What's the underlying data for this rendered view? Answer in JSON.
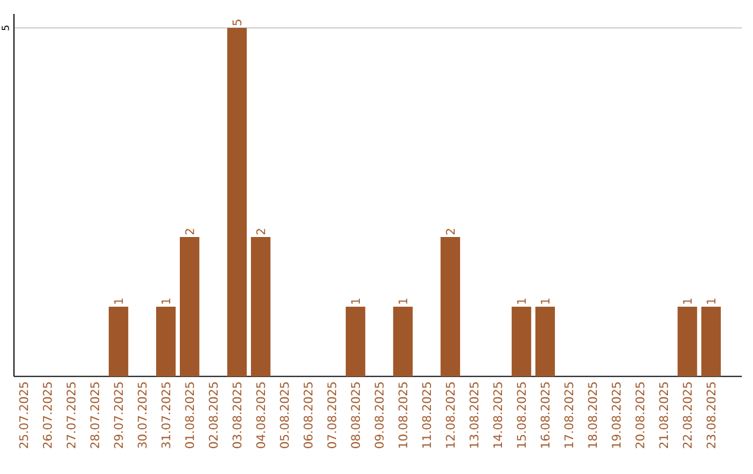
{
  "chart_data": {
    "type": "bar",
    "categories": [
      "25.07.2025",
      "26.07.2025",
      "27.07.2025",
      "28.07.2025",
      "29.07.2025",
      "30.07.2025",
      "31.07.2025",
      "01.08.2025",
      "02.08.2025",
      "03.08.2025",
      "04.08.2025",
      "05.08.2025",
      "06.08.2025",
      "07.08.2025",
      "08.08.2025",
      "09.08.2025",
      "10.08.2025",
      "11.08.2025",
      "12.08.2025",
      "13.08.2025",
      "14.08.2025",
      "15.08.2025",
      "16.08.2025",
      "17.08.2025",
      "18.08.2025",
      "19.08.2025",
      "20.08.2025",
      "21.08.2025",
      "22.08.2025",
      "23.08.2025"
    ],
    "values": [
      0,
      0,
      0,
      0,
      1,
      0,
      1,
      2,
      0,
      5,
      2,
      0,
      0,
      0,
      1,
      0,
      1,
      0,
      2,
      0,
      0,
      1,
      1,
      0,
      0,
      0,
      0,
      0,
      1,
      1
    ],
    "value_labels": [
      null,
      null,
      null,
      null,
      "1",
      null,
      "1",
      "2",
      null,
      "5",
      "2",
      null,
      null,
      null,
      "1",
      null,
      "1",
      null,
      "2",
      null,
      null,
      "1",
      "1",
      null,
      null,
      null,
      null,
      null,
      "1",
      "1"
    ],
    "color": "#a0582a",
    "ylim": [
      0,
      5.2
    ],
    "yticks": [
      5
    ],
    "grid": "y"
  }
}
